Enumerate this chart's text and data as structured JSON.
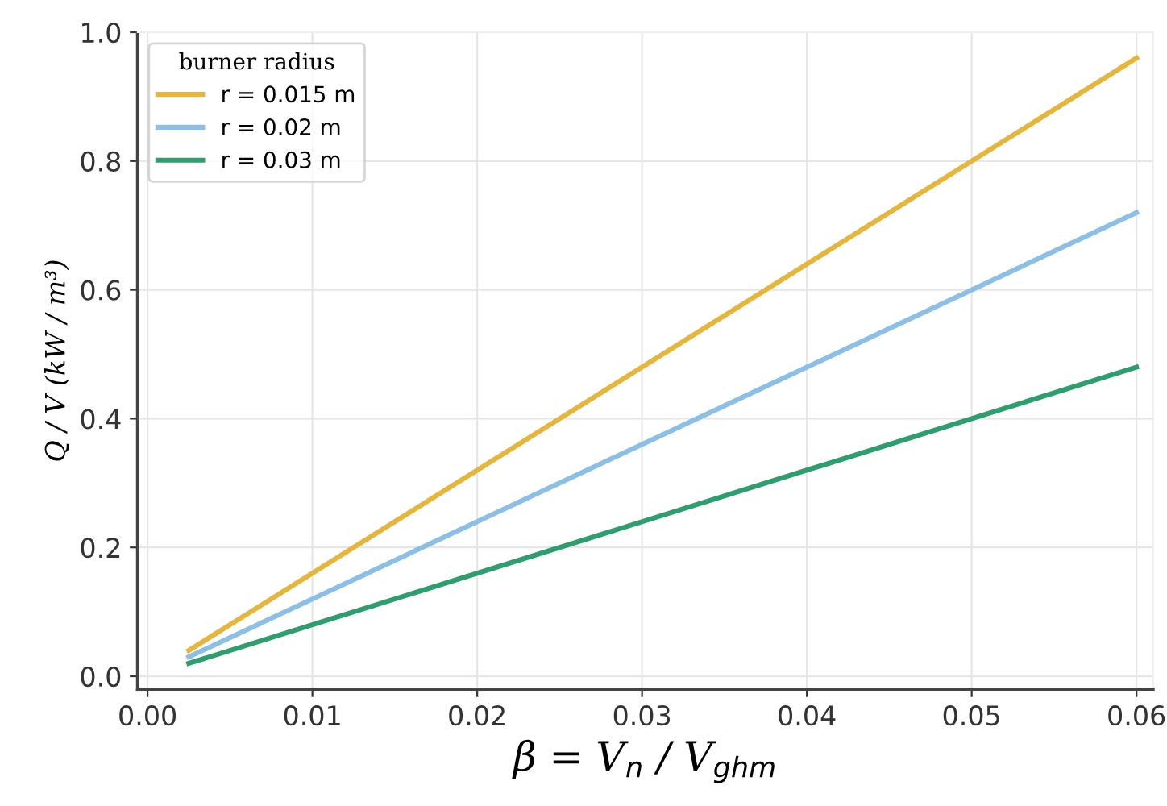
{
  "chart_data": {
    "type": "line",
    "xlabel": "β = V$_{n}$ / V$_{ghm}$",
    "ylabel": "Q / V (kW / m³)",
    "legend_title": "burner radius",
    "series": [
      {
        "name": "r = 0.015 m",
        "color": "#e6b53c",
        "values": [
          0.04,
          0.96
        ]
      },
      {
        "name": "r = 0.02 m",
        "color": "#8cbfe6",
        "values": [
          0.03,
          0.72
        ]
      },
      {
        "name": "r = 0.03 m",
        "color": "#2e9e6e",
        "values": [
          0.02,
          0.48
        ]
      }
    ],
    "x": [
      0.0025,
      0.06
    ],
    "xlim": [
      -0.0006,
      0.061
    ],
    "ylim": [
      -0.02,
      1.0
    ],
    "xticks": [
      {
        "value": 0,
        "label": "0.00"
      },
      0.01,
      0.02,
      0.03,
      0.04,
      0.05,
      0.06
    ],
    "yticks": [
      {
        "value": 0,
        "label": "0.0"
      },
      0.2,
      0.4,
      0.6,
      0.8,
      {
        "value": 1,
        "label": "1.0"
      }
    ],
    "grid": true,
    "legend": "top left",
    "line_style": "solid",
    "marker": "none"
  }
}
